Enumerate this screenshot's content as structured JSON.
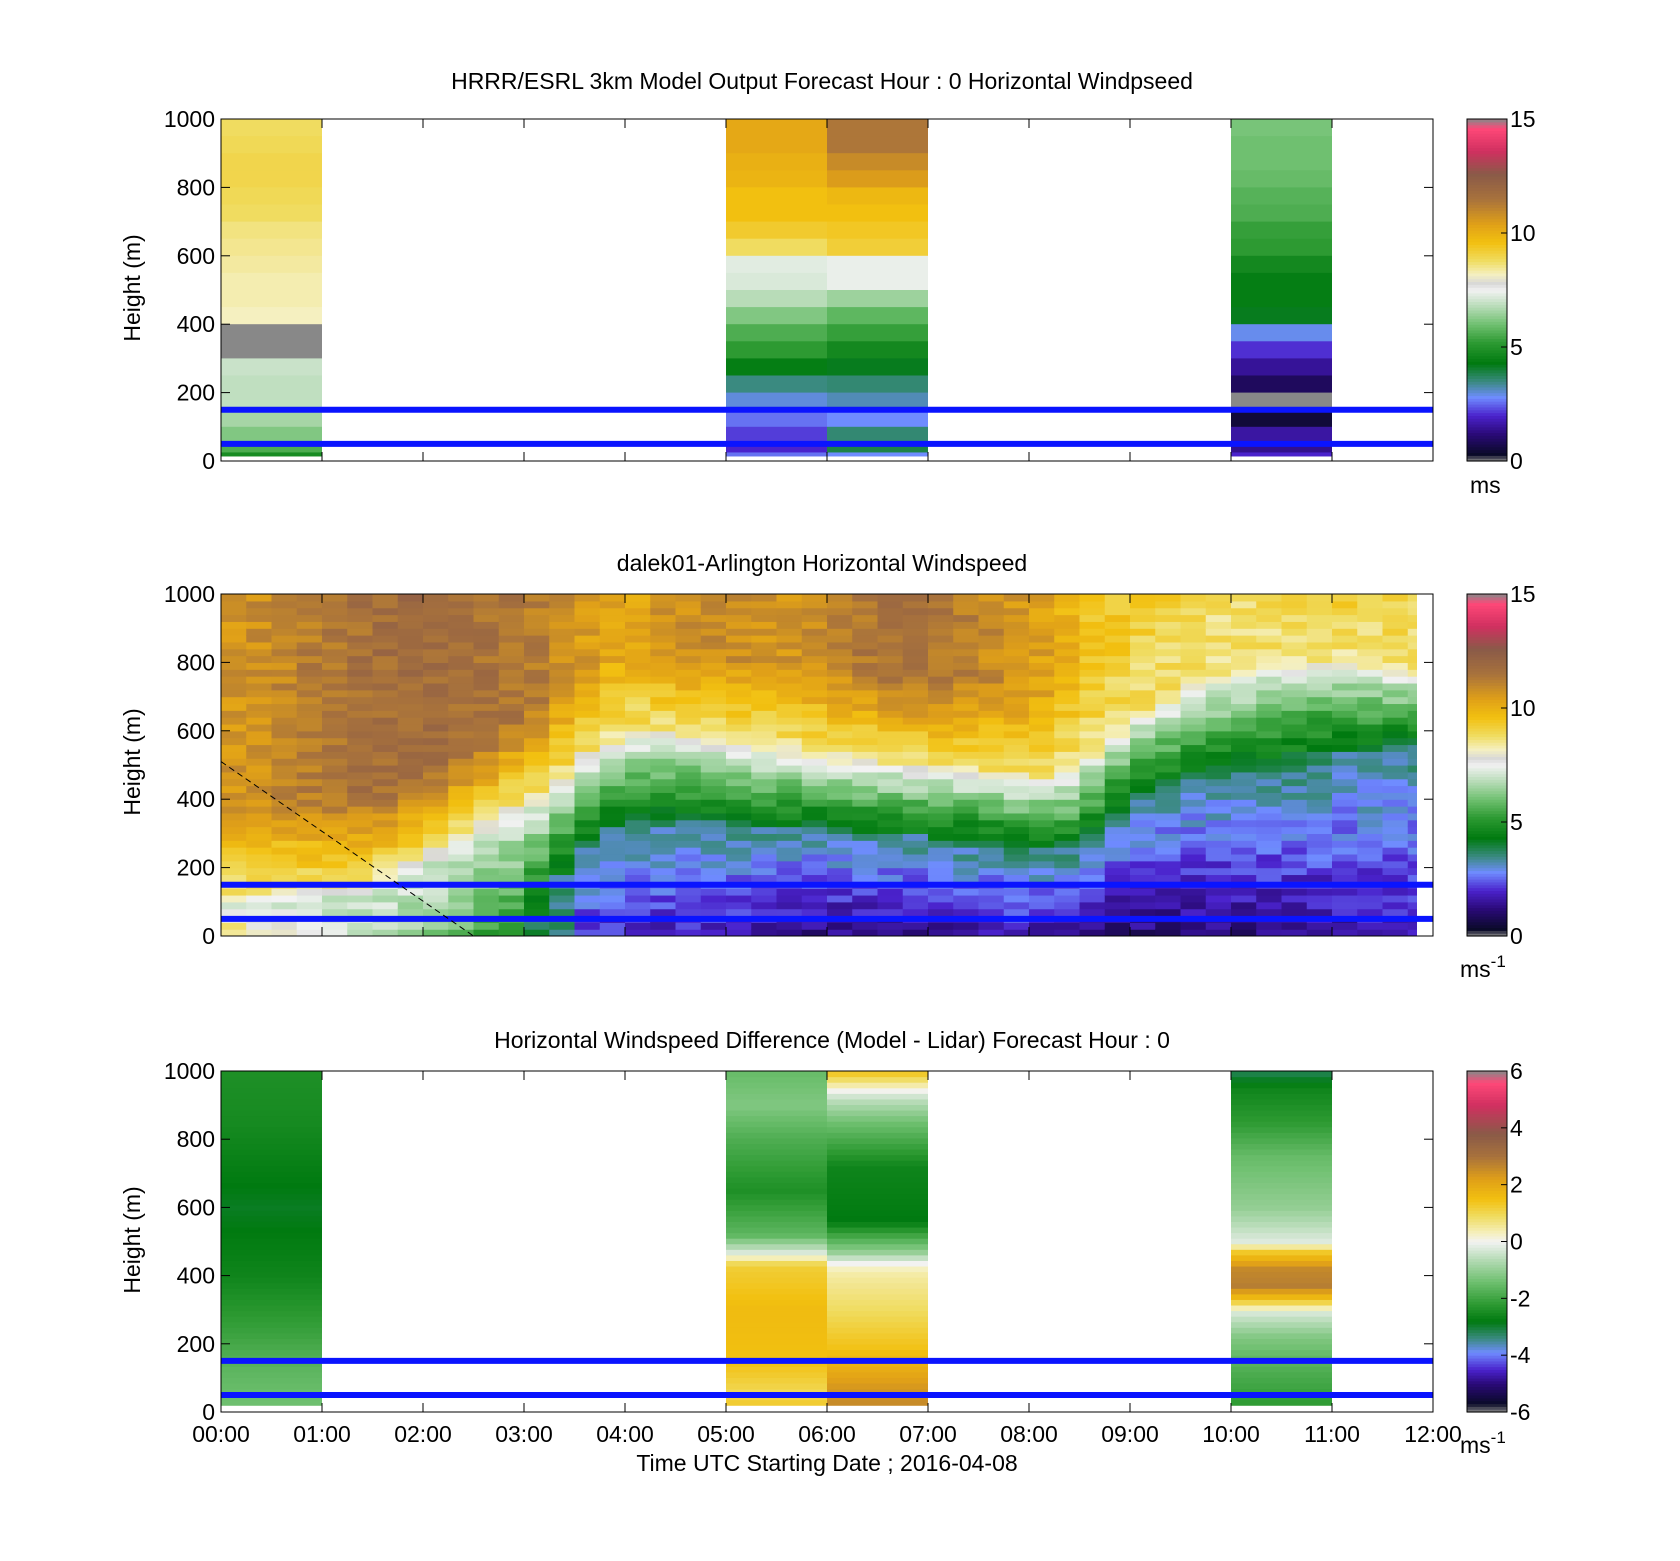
{
  "figure": {
    "x_ticklabels": [
      "00:00",
      "01:00",
      "02:00",
      "03:00",
      "04:00",
      "05:00",
      "06:00",
      "07:00",
      "08:00",
      "09:00",
      "10:00",
      "11:00",
      "12:00"
    ],
    "xlabel": "Time UTC  Starting Date ; 2016-04-08",
    "reference_lines_m": [
      50,
      150
    ],
    "reference_line_color": "#0a14ff",
    "windspeed_colormap": [
      {
        "v": 0.0,
        "c": "#888888"
      },
      {
        "v": 0.3,
        "c": "#0a0a28"
      },
      {
        "v": 1.2,
        "c": "#2a0a78"
      },
      {
        "v": 2.0,
        "c": "#4a22cc"
      },
      {
        "v": 2.8,
        "c": "#6f8cff"
      },
      {
        "v": 3.5,
        "c": "#3a8a80"
      },
      {
        "v": 4.3,
        "c": "#007a10"
      },
      {
        "v": 5.2,
        "c": "#2d9a32"
      },
      {
        "v": 6.0,
        "c": "#6fc070"
      },
      {
        "v": 6.8,
        "c": "#b8dcb8"
      },
      {
        "v": 7.5,
        "c": "#f2f2f2"
      },
      {
        "v": 7.8,
        "c": "#d8d8d8"
      },
      {
        "v": 8.2,
        "c": "#f5f0c0"
      },
      {
        "v": 8.8,
        "c": "#f0dc60"
      },
      {
        "v": 9.6,
        "c": "#f2c010"
      },
      {
        "v": 10.4,
        "c": "#e0a018"
      },
      {
        "v": 11.5,
        "c": "#a8723c"
      },
      {
        "v": 12.6,
        "c": "#8a5a48"
      },
      {
        "v": 13.6,
        "c": "#d03060"
      },
      {
        "v": 14.6,
        "c": "#ff4878"
      },
      {
        "v": 15.0,
        "c": "#888888"
      }
    ],
    "difference_colormap": [
      {
        "v": -6.0,
        "c": "#888888"
      },
      {
        "v": -5.7,
        "c": "#0a0a28"
      },
      {
        "v": -5.0,
        "c": "#2a0a78"
      },
      {
        "v": -4.5,
        "c": "#4a22cc"
      },
      {
        "v": -3.9,
        "c": "#6f8cff"
      },
      {
        "v": -3.4,
        "c": "#3a8a80"
      },
      {
        "v": -2.8,
        "c": "#007a10"
      },
      {
        "v": -2.2,
        "c": "#2d9a32"
      },
      {
        "v": -1.4,
        "c": "#6fc070"
      },
      {
        "v": -0.6,
        "c": "#b8dcb8"
      },
      {
        "v": 0.0,
        "c": "#f2f2f2"
      },
      {
        "v": 0.3,
        "c": "#f5f0c0"
      },
      {
        "v": 0.9,
        "c": "#f0dc60"
      },
      {
        "v": 1.5,
        "c": "#f2c010"
      },
      {
        "v": 2.2,
        "c": "#e0a018"
      },
      {
        "v": 3.0,
        "c": "#a8723c"
      },
      {
        "v": 3.8,
        "c": "#8a5a48"
      },
      {
        "v": 4.8,
        "c": "#d03060"
      },
      {
        "v": 5.6,
        "c": "#ff4878"
      },
      {
        "v": 6.0,
        "c": "#888888"
      }
    ]
  },
  "chart_data": [
    {
      "type": "heatmap",
      "title": "HRRR/ESRL 3km Model Output   Forecast Hour : 0 Horizontal Windpseed",
      "xlabel": "",
      "ylabel": "Height (m)",
      "xlim": [
        0,
        12
      ],
      "ylim": [
        0,
        1000
      ],
      "y_ticks": [
        0,
        200,
        400,
        600,
        800,
        1000
      ],
      "colorbar": {
        "ticks": [
          0,
          5,
          10,
          15
        ],
        "label": "ms",
        "exponent": "",
        "range": [
          0,
          15
        ],
        "colormap": "windspeed"
      },
      "height_levels_m": [
        1000,
        950,
        900,
        850,
        800,
        750,
        700,
        650,
        600,
        550,
        500,
        450,
        400,
        350,
        300,
        250,
        200,
        150,
        100,
        50,
        25
      ],
      "cells": [
        {
          "x0": 0.0,
          "x1": 1.0,
          "values": [
            8.8,
            8.9,
            9.0,
            9.0,
            8.9,
            8.8,
            8.6,
            8.5,
            8.4,
            8.3,
            8.3,
            8.2,
            0.0,
            0.0,
            7.0,
            6.9,
            6.9,
            6.6,
            6.2,
            5.6,
            4.8
          ]
        },
        {
          "x0": 5.0,
          "x1": 6.0,
          "values": [
            10.2,
            10.2,
            10.0,
            9.9,
            9.6,
            9.6,
            9.3,
            8.8,
            7.3,
            7.2,
            6.8,
            6.2,
            5.6,
            5.2,
            4.4,
            3.5,
            3.0,
            2.6,
            2.2,
            2.0,
            2.6
          ]
        },
        {
          "x0": 6.0,
          "x1": 7.0,
          "values": [
            11.4,
            11.4,
            10.9,
            10.5,
            9.8,
            9.6,
            9.4,
            9.2,
            7.4,
            7.4,
            6.5,
            5.8,
            5.3,
            4.7,
            4.2,
            3.6,
            3.2,
            2.8,
            3.6,
            3.9,
            2.8
          ]
        },
        {
          "x0": 10.0,
          "x1": 11.0,
          "values": [
            6.1,
            6.0,
            6.0,
            5.9,
            5.7,
            5.6,
            5.3,
            5.2,
            4.7,
            4.4,
            4.4,
            4.2,
            2.9,
            2.1,
            1.5,
            0.9,
            0.0,
            0.5,
            1.6,
            1.4,
            2.0
          ]
        }
      ]
    },
    {
      "type": "heatmap",
      "title": "dalek01-Arlington  Horizontal Windspeed",
      "xlabel": "",
      "ylabel": "Height (m)",
      "xlim": [
        0,
        12
      ],
      "ylim": [
        0,
        1000
      ],
      "y_ticks": [
        0,
        200,
        400,
        600,
        800,
        1000
      ],
      "colorbar": {
        "ticks": [
          0,
          5,
          10,
          15
        ],
        "label": "ms",
        "exponent": "-1",
        "range": [
          0,
          15
        ],
        "colormap": "windspeed"
      },
      "time_step_h": 0.25,
      "profile_breakpoints": {
        "time_h": [
          0.0,
          0.5,
          1.0,
          1.5,
          2.0,
          2.5,
          3.0,
          3.3,
          3.5,
          4.0,
          4.5,
          5.0,
          5.5,
          6.0,
          6.5,
          7.0,
          7.5,
          8.0,
          8.3,
          8.6,
          9.0,
          9.5,
          10.0,
          10.5,
          11.0,
          11.5,
          12.0
        ],
        "green_top_m": [
          80,
          100,
          110,
          130,
          200,
          280,
          360,
          400,
          480,
          560,
          560,
          530,
          520,
          500,
          480,
          460,
          450,
          430,
          440,
          500,
          600,
          680,
          740,
          760,
          780,
          760,
          740
        ],
        "green_base_m": [
          0,
          0,
          0,
          0,
          0,
          0,
          0,
          130,
          250,
          330,
          340,
          330,
          320,
          320,
          300,
          290,
          280,
          260,
          240,
          290,
          400,
          450,
          480,
          500,
          530,
          550,
          570
        ],
        "surface_speed": [
          9.5,
          8.0,
          7.2,
          6.6,
          6.3,
          5.6,
          4.6,
          4.2,
          2.2,
          1.9,
          1.8,
          1.7,
          1.5,
          1.2,
          1.3,
          1.4,
          1.6,
          1.8,
          1.3,
          1.2,
          1.1,
          1.2,
          1.2,
          1.3,
          1.5,
          1.6,
          1.8
        ],
        "top_speed": [
          10.6,
          10.9,
          11.3,
          11.7,
          11.8,
          11.6,
          11.4,
          11.0,
          10.6,
          10.2,
          10.8,
          10.9,
          10.6,
          11.0,
          11.5,
          11.5,
          11.0,
          10.6,
          10.1,
          9.6,
          9.3,
          9.0,
          8.7,
          9.0,
          9.4,
          9.3,
          9.1
        ]
      },
      "dashed_line": {
        "x": [
          0.0,
          2.5
        ],
        "y": [
          510,
          0
        ]
      }
    },
    {
      "type": "heatmap",
      "title": "Horizontal Windspeed Difference (Model - Lidar) Forecast Hour : 0",
      "xlabel": "Time UTC  Starting Date ; 2016-04-08",
      "ylabel": "Height (m)",
      "xlim": [
        0,
        12
      ],
      "ylim": [
        0,
        1000
      ],
      "y_ticks": [
        0,
        200,
        400,
        600,
        800,
        1000
      ],
      "colorbar": {
        "ticks": [
          -6,
          -4,
          -2,
          0,
          2,
          4,
          6
        ],
        "label": "ms",
        "exponent": "-1",
        "range": [
          -6,
          6
        ],
        "colormap": "difference"
      },
      "cells": [
        {
          "x0": 0.0,
          "x1": 1.0,
          "profile": [
            {
              "h": 1000,
              "v": -2.4
            },
            {
              "h": 850,
              "v": -2.5
            },
            {
              "h": 600,
              "v": -2.9
            },
            {
              "h": 400,
              "v": -2.6
            },
            {
              "h": 250,
              "v": -2.1
            },
            {
              "h": 120,
              "v": -1.6
            },
            {
              "h": 20,
              "v": -1.4
            }
          ]
        },
        {
          "x0": 5.0,
          "x1": 6.0,
          "profile": [
            {
              "h": 1000,
              "v": -1.5
            },
            {
              "h": 900,
              "v": -1.2
            },
            {
              "h": 800,
              "v": -1.8
            },
            {
              "h": 650,
              "v": -2.4
            },
            {
              "h": 520,
              "v": -1.6
            },
            {
              "h": 470,
              "v": -0.3
            },
            {
              "h": 430,
              "v": 1.2
            },
            {
              "h": 300,
              "v": 1.6
            },
            {
              "h": 150,
              "v": 1.5
            },
            {
              "h": 60,
              "v": 1.0
            },
            {
              "h": 20,
              "v": 1.3
            }
          ]
        },
        {
          "x0": 6.0,
          "x1": 7.0,
          "profile": [
            {
              "h": 1000,
              "v": 1.5
            },
            {
              "h": 950,
              "v": 0.2
            },
            {
              "h": 920,
              "v": -0.5
            },
            {
              "h": 850,
              "v": -1.4
            },
            {
              "h": 720,
              "v": -2.6
            },
            {
              "h": 560,
              "v": -2.8
            },
            {
              "h": 470,
              "v": -1.0
            },
            {
              "h": 430,
              "v": 0.2
            },
            {
              "h": 400,
              "v": 0.5
            },
            {
              "h": 300,
              "v": 0.9
            },
            {
              "h": 180,
              "v": 1.5
            },
            {
              "h": 80,
              "v": 2.3
            },
            {
              "h": 20,
              "v": 2.6
            }
          ]
        },
        {
          "x0": 10.0,
          "x1": 11.0,
          "profile": [
            {
              "h": 1000,
              "v": -3.2
            },
            {
              "h": 950,
              "v": -2.6
            },
            {
              "h": 850,
              "v": -2.2
            },
            {
              "h": 750,
              "v": -1.5
            },
            {
              "h": 600,
              "v": -1.0
            },
            {
              "h": 500,
              "v": -0.2
            },
            {
              "h": 470,
              "v": 1.3
            },
            {
              "h": 420,
              "v": 2.6
            },
            {
              "h": 370,
              "v": 2.8
            },
            {
              "h": 330,
              "v": 1.4
            },
            {
              "h": 290,
              "v": -0.3
            },
            {
              "h": 220,
              "v": -1.2
            },
            {
              "h": 120,
              "v": -1.8
            },
            {
              "h": 20,
              "v": -2.2
            }
          ]
        }
      ]
    }
  ]
}
